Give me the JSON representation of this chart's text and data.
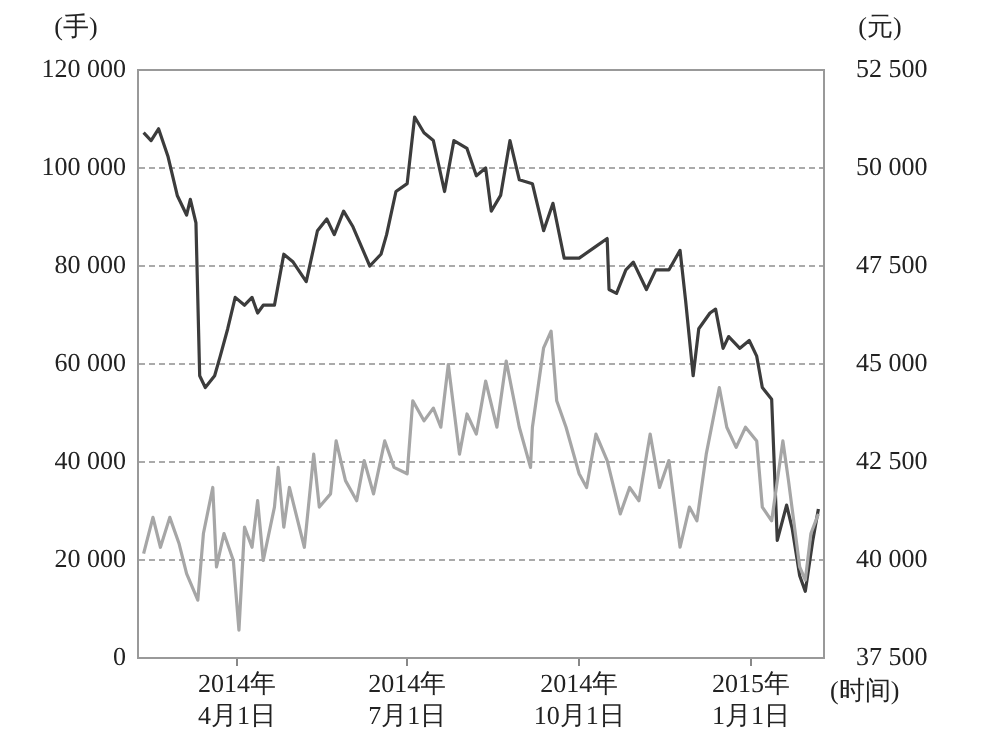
{
  "chart_data": {
    "type": "line",
    "xlabel": "(时间)",
    "ylabel": "(手)",
    "y2label": "(元)",
    "grid": "y",
    "xlim": [
      "2014-02-07",
      "2015-02-09"
    ],
    "xticks": [
      {
        "value": "2014-04-01",
        "label": "2014年\n4月1日"
      },
      {
        "value": "2014-07-01",
        "label": "2014年\n7月1日"
      },
      {
        "value": "2014-10-01",
        "label": "2014年\n10月1日"
      },
      {
        "value": "2015-01-01",
        "label": "2015年\n1月1日"
      }
    ],
    "ylim": [
      0,
      120000
    ],
    "yticks": [
      0,
      {
        "value": 20000,
        "label": "20 000"
      },
      {
        "value": 40000,
        "label": "40 000"
      },
      {
        "value": 60000,
        "label": "60 000"
      },
      {
        "value": 80000,
        "label": "80 000"
      },
      {
        "value": 100000,
        "label": "100 000"
      },
      {
        "value": 120000,
        "label": "120 000"
      }
    ],
    "y2lim": [
      37500,
      52500
    ],
    "y2ticks": [
      {
        "value": 37500,
        "label": "37 500"
      },
      {
        "value": 40000,
        "label": "40 000"
      },
      {
        "value": 42500,
        "label": "42 500"
      },
      {
        "value": 45000,
        "label": "45 000"
      },
      {
        "value": 47500,
        "label": "47 500"
      },
      {
        "value": 50000,
        "label": "50 000"
      },
      {
        "value": 52500,
        "label": "52 500"
      }
    ],
    "series": [
      {
        "color": "#a6a6a6",
        "x": [
          "2014-02-10",
          "2014-02-15",
          "2014-02-19",
          "2014-02-24",
          "2014-03-01",
          "2014-03-05",
          "2014-03-11",
          "2014-03-14",
          "2014-03-19",
          "2014-03-21",
          "2014-03-25",
          "2014-03-30",
          "2014-04-02",
          "2014-04-05",
          "2014-04-09",
          "2014-04-12",
          "2014-04-15",
          "2014-04-21",
          "2014-04-23",
          "2014-04-26",
          "2014-04-29",
          "2014-05-07",
          "2014-05-12",
          "2014-05-15",
          "2014-05-21",
          "2014-05-24",
          "2014-05-29",
          "2014-06-04",
          "2014-06-08",
          "2014-06-13",
          "2014-06-19",
          "2014-06-24",
          "2014-07-01",
          "2014-07-04",
          "2014-07-10",
          "2014-07-15",
          "2014-07-19",
          "2014-07-23",
          "2014-07-29",
          "2014-08-02",
          "2014-08-07",
          "2014-08-12",
          "2014-08-18",
          "2014-08-23",
          "2014-08-30",
          "2014-09-05",
          "2014-09-06",
          "2014-09-12",
          "2014-09-16",
          "2014-09-19",
          "2014-09-24",
          "2014-10-01",
          "2014-10-05",
          "2014-10-10",
          "2014-10-16",
          "2014-10-23",
          "2014-10-28",
          "2014-11-02",
          "2014-11-08",
          "2014-11-13",
          "2014-11-18",
          "2014-11-24",
          "2014-11-29",
          "2014-12-03",
          "2014-12-08",
          "2014-12-15",
          "2014-12-19",
          "2014-12-24",
          "2014-12-29",
          "2015-01-04",
          "2015-01-07",
          "2015-01-12",
          "2015-01-18",
          "2015-01-21",
          "2015-01-27",
          "2015-01-30",
          "2015-02-02",
          "2015-02-06"
        ],
        "values": [
          21300,
          28700,
          22600,
          28700,
          23300,
          17200,
          11800,
          25400,
          34800,
          18600,
          25400,
          19900,
          5700,
          26700,
          22600,
          32100,
          19900,
          30800,
          38900,
          26700,
          34800,
          22600,
          41600,
          30800,
          33500,
          44300,
          36200,
          32100,
          40300,
          33500,
          44300,
          38900,
          37600,
          52500,
          48400,
          51000,
          47100,
          59900,
          41600,
          49800,
          45700,
          56500,
          47100,
          60600,
          47100,
          38900,
          47100,
          63300,
          66700,
          52500,
          47100,
          37600,
          34800,
          45700,
          40300,
          29400,
          34800,
          32100,
          45700,
          34800,
          40300,
          22600,
          30800,
          28000,
          41600,
          55200,
          47100,
          43000,
          47100,
          44300,
          30800,
          28000,
          44300,
          36200,
          18600,
          15900,
          25400,
          29400
        ]
      },
      {
        "color": "#3c3c3c",
        "axis": "y2",
        "x": [
          "2014-02-10",
          "2014-02-14",
          "2014-02-18",
          "2014-02-23",
          "2014-02-28",
          "2014-03-05",
          "2014-03-07",
          "2014-03-10",
          "2014-03-12",
          "2014-03-15",
          "2014-03-20",
          "2014-03-23",
          "2014-03-27",
          "2014-03-31",
          "2014-04-05",
          "2014-04-09",
          "2014-04-12",
          "2014-04-15",
          "2014-04-21",
          "2014-04-26",
          "2014-05-01",
          "2014-05-08",
          "2014-05-14",
          "2014-05-19",
          "2014-05-23",
          "2014-05-28",
          "2014-06-02",
          "2014-06-11",
          "2014-06-17",
          "2014-06-20",
          "2014-06-25",
          "2014-07-01",
          "2014-07-05",
          "2014-07-10",
          "2014-07-15",
          "2014-07-21",
          "2014-07-26",
          "2014-08-02",
          "2014-08-07",
          "2014-08-12",
          "2014-08-15",
          "2014-08-20",
          "2014-08-25",
          "2014-08-30",
          "2014-09-06",
          "2014-09-12",
          "2014-09-17",
          "2014-09-23",
          "2014-10-01",
          "2014-10-10",
          "2014-10-16",
          "2014-10-17",
          "2014-10-21",
          "2014-10-26",
          "2014-10-30",
          "2014-11-06",
          "2014-11-11",
          "2014-11-18",
          "2014-11-24",
          "2014-11-27",
          "2014-12-01",
          "2014-12-04",
          "2014-12-10",
          "2014-12-13",
          "2014-12-17",
          "2014-12-20",
          "2014-12-26",
          "2014-12-31",
          "2015-01-04",
          "2015-01-07",
          "2015-01-12",
          "2015-01-15",
          "2015-01-20",
          "2015-01-23",
          "2015-01-27",
          "2015-01-30",
          "2015-02-03",
          "2015-02-06"
        ],
        "values": [
          50900,
          50700,
          51000,
          50300,
          49300,
          48800,
          49200,
          48600,
          44700,
          44400,
          44700,
          45200,
          45900,
          46700,
          46500,
          46700,
          46300,
          46500,
          46500,
          47800,
          47600,
          47100,
          48400,
          48700,
          48300,
          48900,
          48500,
          47500,
          47800,
          48300,
          49400,
          49600,
          51300,
          50900,
          50700,
          49400,
          50700,
          50500,
          49800,
          50000,
          48900,
          49300,
          50700,
          49700,
          49600,
          48400,
          49100,
          47700,
          47700,
          48000,
          48200,
          46900,
          46800,
          47400,
          47600,
          46900,
          47400,
          47400,
          47900,
          46600,
          44700,
          45900,
          46300,
          46400,
          45400,
          45700,
          45400,
          45600,
          45200,
          44400,
          44100,
          40500,
          41400,
          40800,
          39600,
          39200,
          40500,
          41300
        ]
      }
    ]
  }
}
